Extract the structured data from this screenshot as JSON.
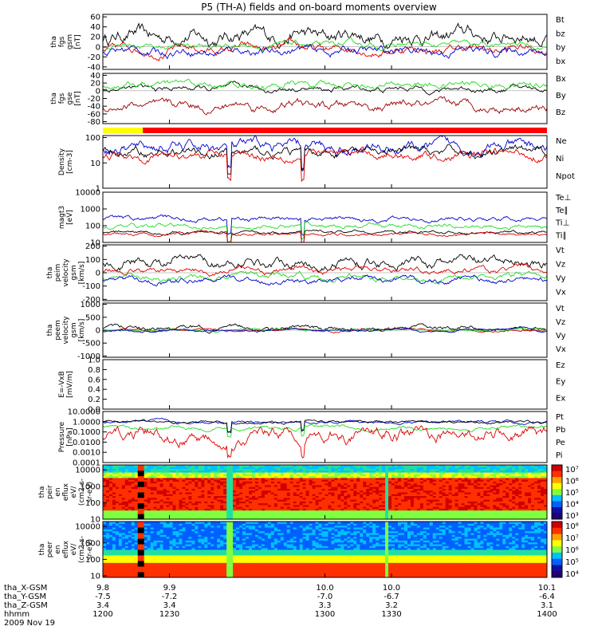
{
  "title": "P5 (TH-A) fields and on-board moments overview",
  "colors": {
    "black": "#000000",
    "red": "#dd0000",
    "green": "#22dd22",
    "blue": "#0000cc",
    "yellow": "#ffff00",
    "darkred": "#990000"
  },
  "chart_data": [
    {
      "type": "line",
      "ylabel": [
        "tha",
        "fgs",
        "gsm",
        "[nT]"
      ],
      "yticks": [
        60,
        40,
        20,
        0,
        -20,
        -40
      ],
      "ylim": [
        -45,
        65
      ],
      "legend": [
        {
          "name": "Bt",
          "color": "#000000"
        },
        {
          "name": "bz",
          "color": "#dd0000"
        },
        {
          "name": "by",
          "color": "#22dd22"
        },
        {
          "name": "bx",
          "color": "#0000cc"
        }
      ],
      "series": [
        {
          "name": "Bt",
          "color": "#000000",
          "base": 22,
          "amp": 10
        },
        {
          "name": "bz",
          "color": "#dd0000",
          "base": -5,
          "amp": 6
        },
        {
          "name": "by",
          "color": "#22dd22",
          "base": 3,
          "amp": 4
        },
        {
          "name": "bx",
          "color": "#0000cc",
          "base": -8,
          "amp": 6
        }
      ]
    },
    {
      "type": "line",
      "ylabel": [
        "tha",
        "fgs",
        "gse",
        "[nT]"
      ],
      "yticks": [
        40,
        20,
        0,
        -20,
        -40,
        -60,
        -80
      ],
      "ylim": [
        -85,
        45
      ],
      "legend": [
        {
          "name": "Bx",
          "color": "#000000"
        },
        {
          "name": "By",
          "color": "#22dd22"
        },
        {
          "name": "Bz",
          "color": "#990000"
        }
      ],
      "series": [
        {
          "name": "Bx",
          "color": "#000000",
          "base": 5,
          "amp": 5
        },
        {
          "name": "By",
          "color": "#22dd22",
          "base": 15,
          "amp": 6
        },
        {
          "name": "Bz",
          "color": "#990000",
          "base": -40,
          "amp": 8
        }
      ]
    },
    {
      "type": "bar",
      "segments": [
        {
          "from": 1200,
          "to": 1218,
          "color": "#ffff00"
        },
        {
          "from": 1218,
          "to": 1400,
          "color": "#ff0000"
        }
      ]
    },
    {
      "type": "line",
      "log": true,
      "ylabel": [
        "Density",
        "[cm-3]"
      ],
      "yticks": [
        "100",
        "10",
        "1"
      ],
      "ylim": [
        1,
        120
      ],
      "legend": [
        {
          "name": "Ne",
          "color": "#dd0000"
        },
        {
          "name": "Ni",
          "color": "#000000"
        },
        {
          "name": "Npot",
          "color": "#0000cc"
        }
      ],
      "series": [
        {
          "name": "Npot",
          "color": "#0000cc",
          "base": 40,
          "amp": 0.25
        },
        {
          "name": "Ni",
          "color": "#000000",
          "base": 25,
          "amp": 0.2
        },
        {
          "name": "Ne",
          "color": "#dd0000",
          "base": 22,
          "amp": 0.2
        }
      ]
    },
    {
      "type": "line",
      "log": true,
      "ylabel": [
        "magt3",
        "[eV]"
      ],
      "yticks": [
        "10000",
        "1000",
        "100",
        "10"
      ],
      "ylim": [
        10,
        10000
      ],
      "legend": [
        {
          "name": "Te⊥",
          "color": "#dd0000"
        },
        {
          "name": "Te∥",
          "color": "#000000"
        },
        {
          "name": "Ti⊥",
          "color": "#0000cc"
        },
        {
          "name": "Ti∥",
          "color": "#22dd22"
        }
      ],
      "series": [
        {
          "name": "Ti⊥",
          "color": "#0000cc",
          "base": 250,
          "amp": 0.15
        },
        {
          "name": "Ti∥",
          "color": "#22dd22",
          "base": 90,
          "amp": 0.15
        },
        {
          "name": "Te∥",
          "color": "#000000",
          "base": 40,
          "amp": 0.1
        },
        {
          "name": "Te⊥",
          "color": "#dd0000",
          "base": 32,
          "amp": 0.1
        }
      ]
    },
    {
      "type": "line",
      "ylabel": [
        "tha",
        "peim",
        "velocity",
        "gsm",
        "[km/s]"
      ],
      "yticks": [
        200,
        100,
        0,
        -100,
        -200
      ],
      "ylim": [
        -210,
        210
      ],
      "legend": [
        {
          "name": "Vt",
          "color": "#000000"
        },
        {
          "name": "Vz",
          "color": "#dd0000"
        },
        {
          "name": "Vy",
          "color": "#22dd22"
        },
        {
          "name": "Vx",
          "color": "#0000cc"
        }
      ],
      "series": [
        {
          "name": "Vt",
          "color": "#000000",
          "base": 80,
          "amp": 25
        },
        {
          "name": "Vz",
          "color": "#dd0000",
          "base": 20,
          "amp": 15
        },
        {
          "name": "Vy",
          "color": "#22dd22",
          "base": -30,
          "amp": 15
        },
        {
          "name": "Vx",
          "color": "#0000cc",
          "base": -55,
          "amp": 15
        }
      ]
    },
    {
      "type": "line",
      "ylabel": [
        "tha",
        "peem",
        "velocity",
        "gsm",
        "[km/s]"
      ],
      "yticks": [
        1000,
        500,
        0,
        -500,
        -1000
      ],
      "ylim": [
        -1050,
        1050
      ],
      "legend": [
        {
          "name": "Vt",
          "color": "#000000"
        },
        {
          "name": "Vz",
          "color": "#dd0000"
        },
        {
          "name": "Vy",
          "color": "#22dd22"
        },
        {
          "name": "Vx",
          "color": "#0000cc"
        }
      ],
      "series": [
        {
          "name": "Vt",
          "color": "#000000",
          "base": 60,
          "amp": 60
        },
        {
          "name": "Vz",
          "color": "#dd0000",
          "base": 5,
          "amp": 30
        },
        {
          "name": "Vy",
          "color": "#22dd22",
          "base": 0,
          "amp": 30
        },
        {
          "name": "Vx",
          "color": "#0000cc",
          "base": -10,
          "amp": 30
        }
      ]
    },
    {
      "type": "line",
      "ylabel": [
        "E=-VxB",
        "[mV/m]"
      ],
      "yticks": [
        "1.0",
        "0.8",
        "0.6",
        "0.4",
        "0.2",
        "0.0"
      ],
      "ylim": [
        0,
        1
      ],
      "legend": [
        {
          "name": "Ez",
          "color": "#dd0000"
        },
        {
          "name": "Ey",
          "color": "#22dd22"
        },
        {
          "name": "Ex",
          "color": "#0000cc"
        }
      ],
      "series": []
    },
    {
      "type": "line",
      "log": true,
      "ylabel": [
        "Pressure",
        "[nPa]"
      ],
      "yticks": [
        "10.0000",
        "1.0000",
        "0.1000",
        "0.0100",
        "0.0010",
        "0.0001"
      ],
      "ylim": [
        0.0001,
        10
      ],
      "legend": [
        {
          "name": "Pt",
          "color": "#000000"
        },
        {
          "name": "Pb",
          "color": "#dd0000"
        },
        {
          "name": "Pe",
          "color": "#22dd22"
        },
        {
          "name": "Pi",
          "color": "#0000cc"
        }
      ],
      "series": [
        {
          "name": "Pi",
          "color": "#0000cc",
          "base": 0.9,
          "amp": 0.15
        },
        {
          "name": "Pt",
          "color": "#000000",
          "base": 0.95,
          "amp": 0.15
        },
        {
          "name": "Pe",
          "color": "#22dd22",
          "base": 0.25,
          "amp": 0.2
        },
        {
          "name": "Pb",
          "color": "#dd0000",
          "base": 0.05,
          "amp": 0.7
        }
      ]
    },
    {
      "type": "heatmap",
      "log": true,
      "ylabel": [
        "tha",
        "peir",
        "en",
        "eflux",
        "eV/",
        "(cm2-s-",
        "sr-eV)"
      ],
      "yticks": [
        "10000",
        "1000",
        "100",
        "10"
      ],
      "ylim": [
        10,
        20000
      ],
      "colorbar": [
        "10⁷",
        "10⁶",
        "10⁵",
        "10⁴",
        "10³"
      ]
    },
    {
      "type": "heatmap",
      "log": true,
      "ylabel": [
        "tha",
        "peer",
        "en",
        "eflux",
        "eV/",
        "(cm2-s-",
        "sr-eV)"
      ],
      "yticks": [
        "10000",
        "1000",
        "100",
        "10"
      ],
      "ylim": [
        8,
        20000
      ],
      "colorbar": [
        "10⁸",
        "10⁷",
        "10⁶",
        "10⁵",
        "10⁴"
      ]
    }
  ],
  "xaxis": {
    "range": [
      1200,
      1400
    ],
    "ticks": [
      1200,
      1230,
      1300,
      1330,
      1400
    ],
    "rows": [
      {
        "label": "tha_X-GSM",
        "values": [
          "9.8",
          "9.9",
          "10.0",
          "10.0",
          "10.1"
        ]
      },
      {
        "label": "tha_Y-GSM",
        "values": [
          "-7.5",
          "-7.2",
          "-7.0",
          "-6.7",
          "-6.4"
        ]
      },
      {
        "label": "tha_Z-GSM",
        "values": [
          "3.4",
          "3.4",
          "3.3",
          "3.2",
          "3.1"
        ]
      },
      {
        "label": "hhmm",
        "values": [
          "1200",
          "1230",
          "1300",
          "1330",
          "1400"
        ]
      }
    ],
    "date": "2009 Nov 19"
  }
}
